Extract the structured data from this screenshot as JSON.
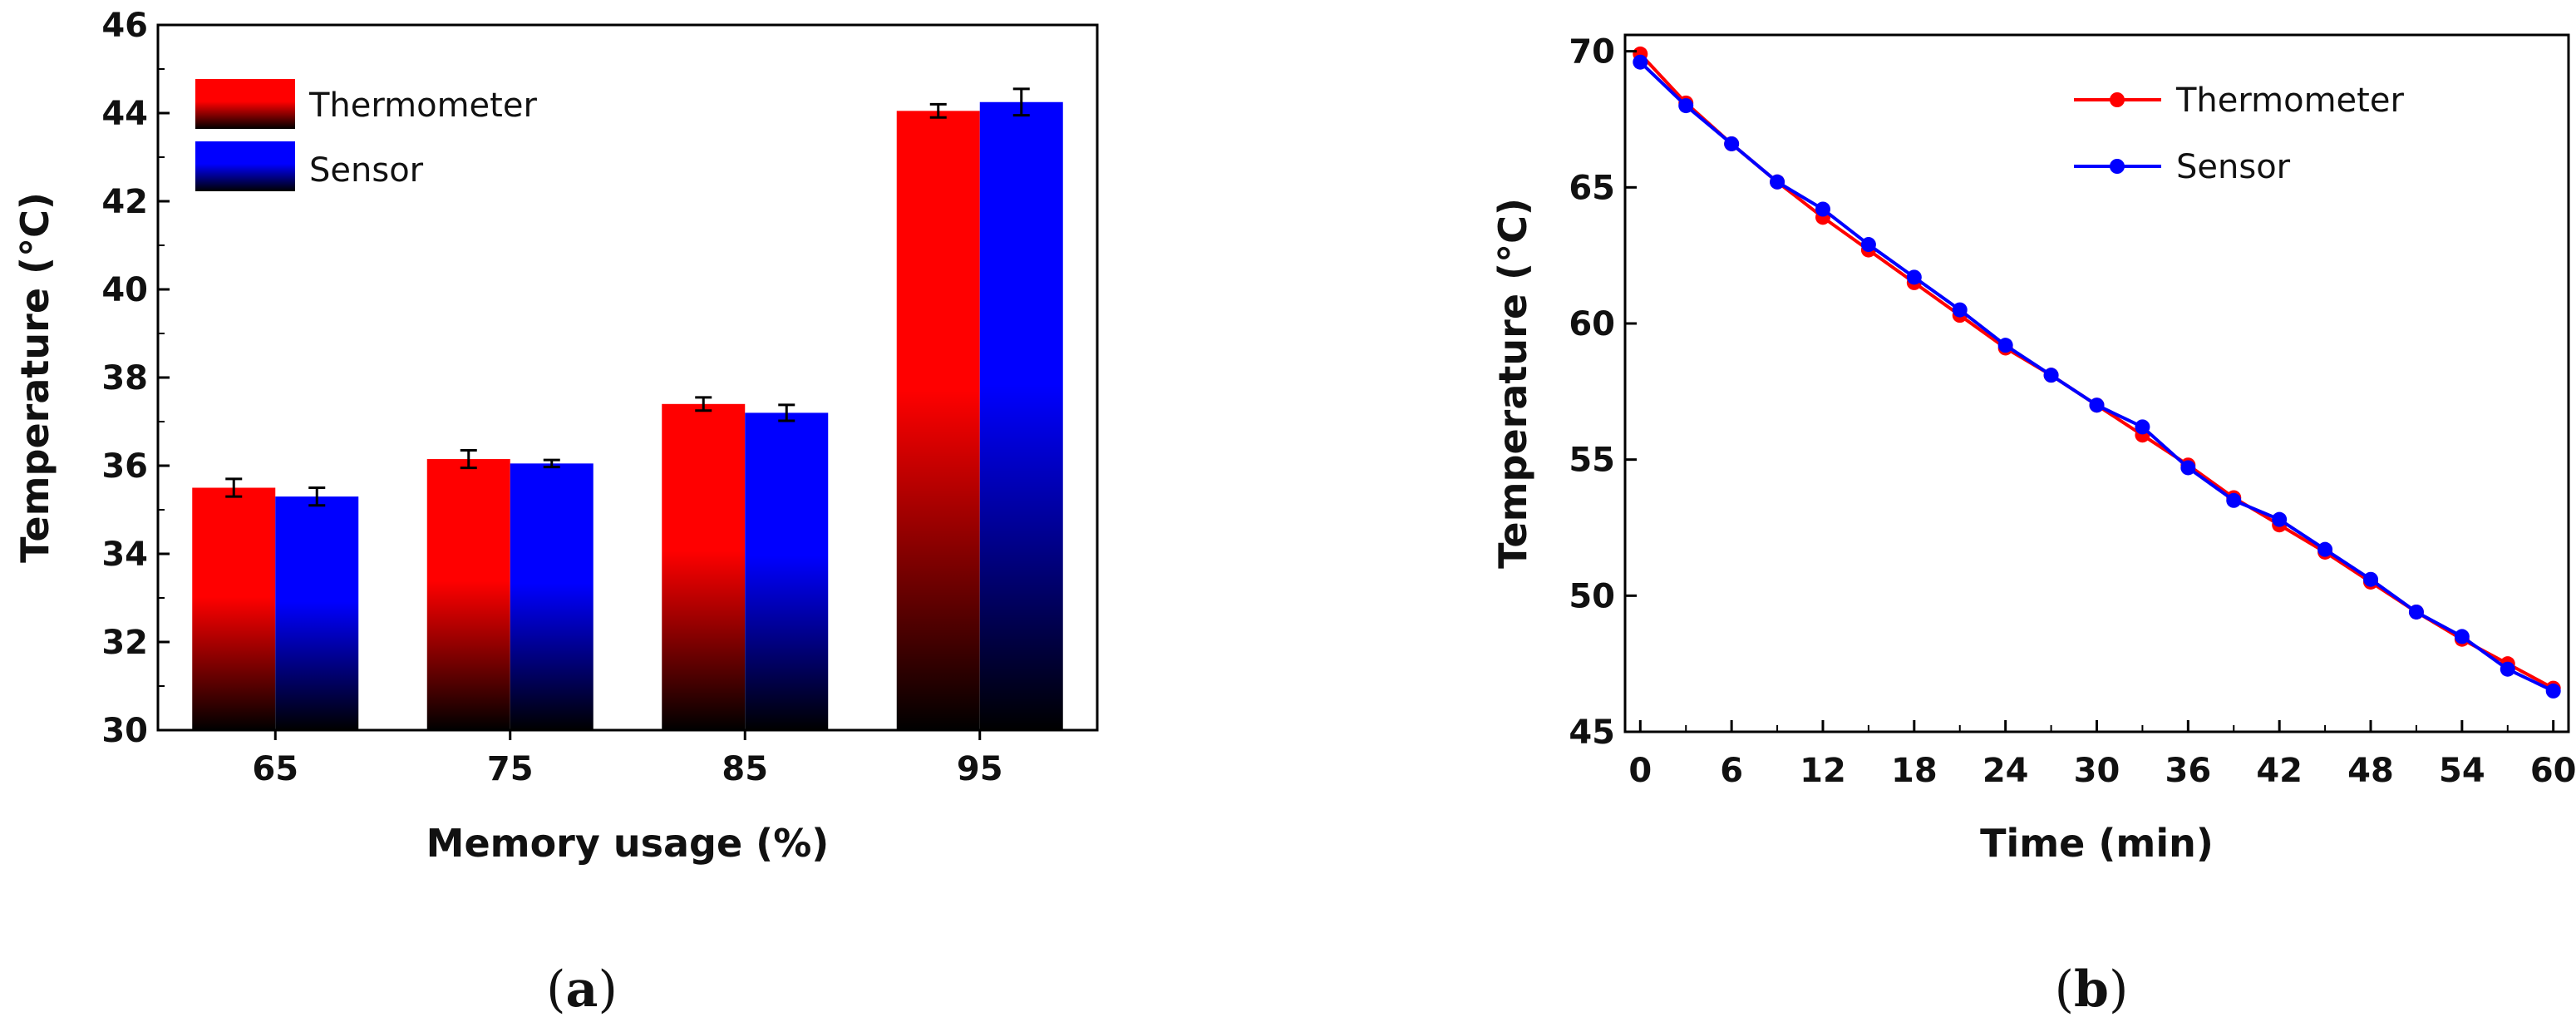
{
  "chart_data": [
    {
      "type": "bar",
      "panel_label": "(a)",
      "panel_label_parts": [
        "(",
        "a",
        ")"
      ],
      "xlabel": "Memory usage (%)",
      "ylabel": "Temperature (°C)",
      "categories": [
        "65",
        "75",
        "85",
        "95"
      ],
      "ylim": [
        30,
        46
      ],
      "yticks": [
        30,
        32,
        34,
        36,
        38,
        40,
        42,
        44,
        46
      ],
      "legend_position": "top-left",
      "series": [
        {
          "name": "Thermometer",
          "color": "#ff0000",
          "values": [
            35.5,
            36.15,
            37.4,
            44.05
          ],
          "errors": [
            0.2,
            0.2,
            0.15,
            0.15
          ]
        },
        {
          "name": "Sensor",
          "color": "#0000ff",
          "values": [
            35.3,
            36.05,
            37.2,
            44.25
          ],
          "errors": [
            0.2,
            0.08,
            0.18,
            0.3
          ]
        }
      ]
    },
    {
      "type": "line",
      "panel_label": "(b)",
      "panel_label_parts": [
        "(",
        "b",
        ")"
      ],
      "xlabel": "Time (min)",
      "ylabel": "Temperature (°C)",
      "xlim": [
        -1,
        61
      ],
      "ylim": [
        45,
        70.6
      ],
      "xticks": [
        0,
        6,
        12,
        18,
        24,
        30,
        36,
        42,
        48,
        54,
        60
      ],
      "yticks": [
        45,
        50,
        55,
        60,
        65,
        70
      ],
      "legend_position": "top-right",
      "x": [
        0,
        3,
        6,
        9,
        12,
        15,
        18,
        21,
        24,
        27,
        30,
        33,
        36,
        39,
        42,
        45,
        48,
        51,
        54,
        57,
        60
      ],
      "series": [
        {
          "name": "Thermometer",
          "color": "#ff0000",
          "values": [
            69.9,
            68.1,
            66.6,
            65.2,
            63.9,
            62.7,
            61.5,
            60.3,
            59.1,
            58.1,
            57.0,
            55.9,
            54.8,
            53.6,
            52.6,
            51.6,
            50.5,
            49.4,
            48.4,
            47.5,
            46.6
          ]
        },
        {
          "name": "Sensor",
          "color": "#0000ff",
          "values": [
            69.6,
            68.0,
            66.6,
            65.2,
            64.2,
            62.9,
            61.7,
            60.5,
            59.2,
            58.1,
            57.0,
            56.2,
            54.7,
            53.5,
            52.8,
            51.7,
            50.6,
            49.4,
            48.5,
            47.3,
            46.5
          ]
        }
      ]
    }
  ]
}
